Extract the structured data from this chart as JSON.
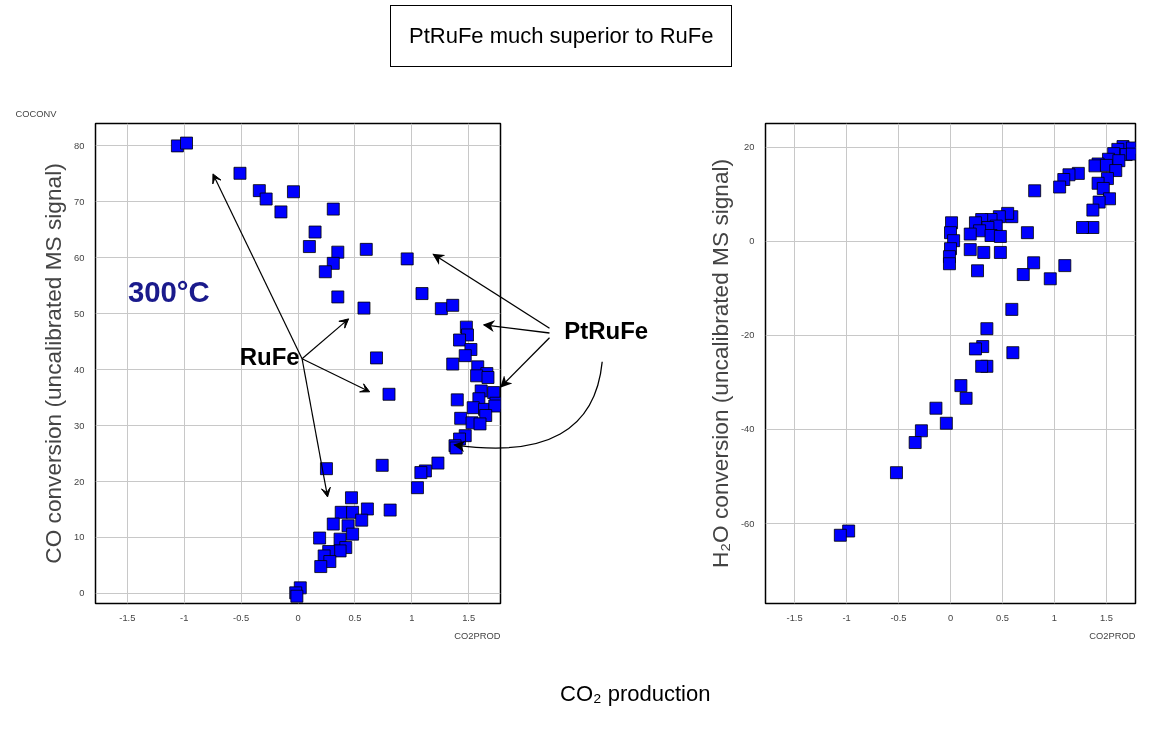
{
  "chart_data": [
    {
      "type": "scatter",
      "title": "PtRuFe much superior to RuFe",
      "xlabel": "CO₂ production",
      "ylabel": "CO conversion (uncalibrated MS signal)",
      "annotations": [
        "300°C",
        "RuFe",
        "PtRuFe",
        "COCONV",
        "CO2PROD"
      ],
      "xlim": [
        -1.78,
        1.78
      ],
      "ylim": [
        -1.8,
        84
      ],
      "xticks": [
        -1.5,
        -1,
        -0.5,
        0,
        0.5,
        1,
        1.5
      ],
      "yticks": [
        0,
        10,
        20,
        30,
        40,
        50,
        60,
        70,
        80
      ],
      "grid": true,
      "marker": "square",
      "series": [
        {
          "color": "#0000ff",
          "x": [
            -1.06,
            -0.98,
            -0.51,
            -0.34,
            -0.28,
            -0.15,
            -0.04,
            0.31,
            0.15,
            0.1,
            0.35,
            0.31,
            0.24,
            0.6,
            0.96,
            0.35,
            0.58,
            1.09,
            1.26,
            1.36,
            1.48,
            1.49,
            1.42,
            1.52,
            1.47,
            1.36,
            0.69,
            1.58,
            1.66,
            0.8,
            1.4,
            1.57,
            1.67,
            1.61,
            1.72,
            1.59,
            1.74,
            1.54,
            1.64,
            1.73,
            1.65,
            1.43,
            1.53,
            1.6,
            1.47,
            1.42,
            1.38,
            1.39,
            0.25,
            0.74,
            1.23,
            1.12,
            1.08,
            1.05,
            0.47,
            0.81,
            0.61,
            0.38,
            0.48,
            0.56,
            0.31,
            0.44,
            0.48,
            0.19,
            0.37,
            0.42,
            0.37,
            0.27,
            0.23,
            0.28,
            0.2,
            0.02,
            -0.02,
            -0.01
          ],
          "values": [
            80,
            80.5,
            75.1,
            72.0,
            70.5,
            68.2,
            71.8,
            68.7,
            64.6,
            62.0,
            61.0,
            59.0,
            57.5,
            61.5,
            59.8,
            53.0,
            51.0,
            53.6,
            50.9,
            51.5,
            47.6,
            46.2,
            45.3,
            43.6,
            42.5,
            41.0,
            42.1,
            40.5,
            39.3,
            35.6,
            34.6,
            38.9,
            38.6,
            36.2,
            35.9,
            34.8,
            34.0,
            33.2,
            32.9,
            33.5,
            31.8,
            31.3,
            30.5,
            30.3,
            28.2,
            27.6,
            26.4,
            26.0,
            22.3,
            22.9,
            23.3,
            21.9,
            21.6,
            18.9,
            17.1,
            14.9,
            15.1,
            14.5,
            14.5,
            13.1,
            12.4,
            12.1,
            10.6,
            9.9,
            9.7,
            8.2,
            7.6,
            7.5,
            6.7,
            5.7,
            4.8,
            1.0,
            0.1,
            -0.5
          ]
        }
      ]
    },
    {
      "type": "scatter",
      "ylabel": "H₂O conversion (uncalibrated MS signal)",
      "annotations": [
        "CO2PROD"
      ],
      "xlim": [
        -1.78,
        1.78
      ],
      "ylim": [
        -77,
        25
      ],
      "xticks": [
        -1.5,
        -1,
        -0.5,
        0,
        0.5,
        1,
        1.5
      ],
      "yticks": [
        -60,
        -40,
        -20,
        0,
        20
      ],
      "grid": true,
      "marker": "square",
      "series": [
        {
          "color": "#0000ff",
          "x": [
            1.66,
            1.61,
            1.75,
            1.69,
            1.57,
            1.52,
            1.62,
            1.42,
            1.39,
            1.5,
            1.75,
            1.59,
            1.51,
            1.42,
            1.47,
            1.53,
            1.43,
            1.37,
            1.37,
            1.27,
            1.23,
            1.14,
            1.09,
            1.05,
            0.81,
            0.74,
            0.59,
            0.55,
            0.47,
            0.39,
            0.3,
            0.24,
            0.44,
            0.36,
            0.28,
            0.19,
            0.39,
            0.48,
            0.01,
            0.0,
            0.03,
            0.0,
            -0.01,
            -0.01,
            0.19,
            0.32,
            0.48,
            0.26,
            0.7,
            0.8,
            0.96,
            1.1,
            0.59,
            0.35,
            0.31,
            0.24,
            0.6,
            0.35,
            0.3,
            0.1,
            0.15,
            -0.14,
            -0.04,
            -0.28,
            -0.34,
            -0.52,
            -0.98,
            -1.06
          ],
          "values": [
            20.1,
            19.5,
            19.8,
            18.4,
            18.6,
            17.4,
            17.1,
            16.4,
            16.0,
            16.1,
            18.5,
            15.0,
            13.3,
            12.3,
            11.2,
            9.0,
            8.3,
            6.6,
            2.9,
            2.9,
            14.4,
            14.1,
            13.1,
            11.5,
            10.7,
            1.8,
            5.2,
            5.9,
            5.2,
            4.6,
            4.6,
            3.9,
            3.2,
            2.9,
            2.2,
            1.5,
            1.2,
            1.0,
            3.9,
            1.8,
            0.1,
            -1.6,
            -3.3,
            -4.8,
            -1.8,
            -2.4,
            -2.4,
            -6.3,
            -7.1,
            -4.6,
            -8.0,
            -5.2,
            -14.5,
            -18.6,
            -22.4,
            -22.9,
            -23.7,
            -26.6,
            -26.6,
            -30.7,
            -33.4,
            -35.5,
            -38.7,
            -40.3,
            -42.8,
            -49.2,
            -61.6,
            -62.5
          ]
        }
      ]
    }
  ]
}
